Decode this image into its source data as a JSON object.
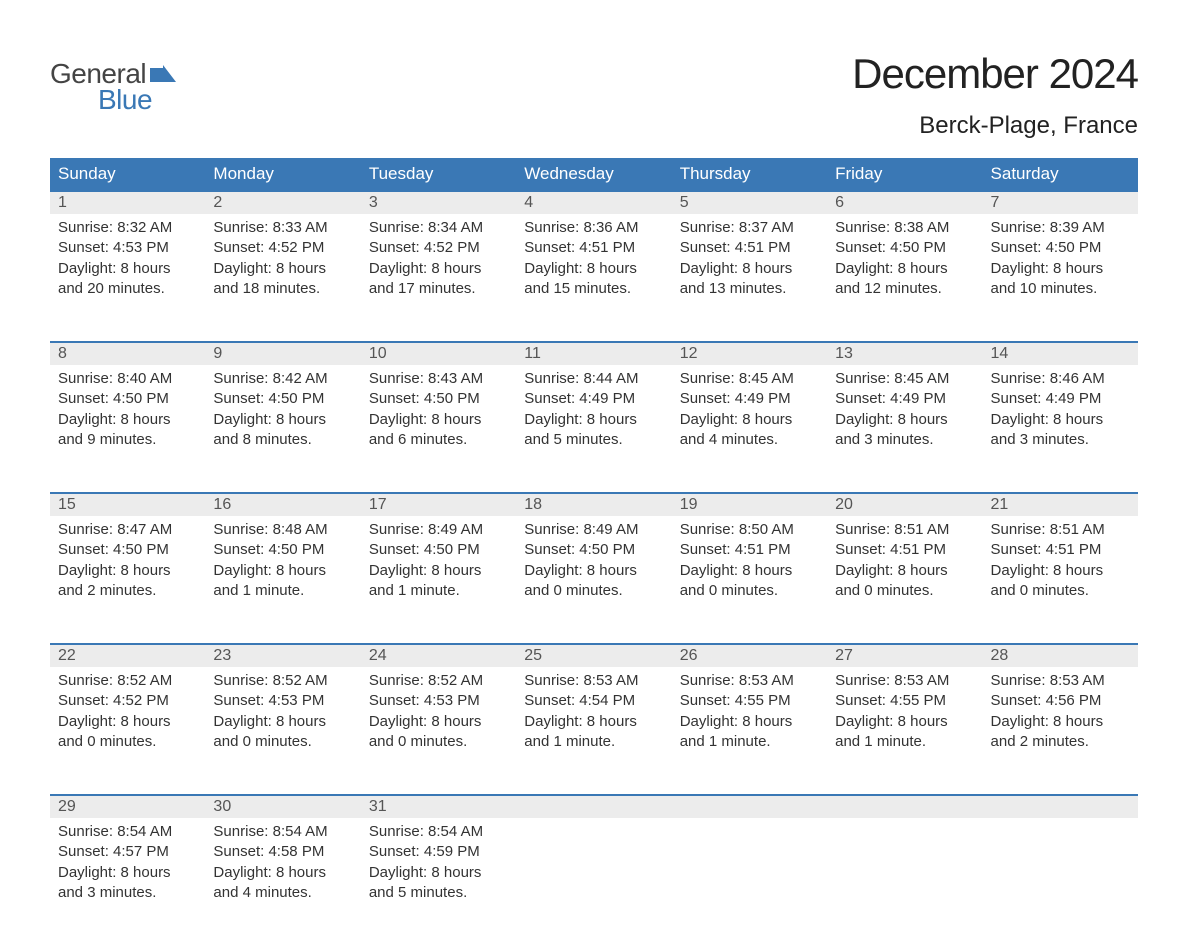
{
  "logo": {
    "top": "General",
    "bottom": "Blue",
    "flag_color": "#3a78b5"
  },
  "title": "December 2024",
  "location": "Berck-Plage, France",
  "colors": {
    "header_bg": "#3a78b5",
    "header_text": "#ffffff",
    "daynum_bg": "#ececec",
    "row_border": "#3a78b5",
    "body_text": "#333333",
    "page_bg": "#ffffff"
  },
  "weekdays": [
    "Sunday",
    "Monday",
    "Tuesday",
    "Wednesday",
    "Thursday",
    "Friday",
    "Saturday"
  ],
  "weeks": [
    [
      {
        "n": "1",
        "sr": "Sunrise: 8:32 AM",
        "ss": "Sunset: 4:53 PM",
        "d1": "Daylight: 8 hours",
        "d2": "and 20 minutes."
      },
      {
        "n": "2",
        "sr": "Sunrise: 8:33 AM",
        "ss": "Sunset: 4:52 PM",
        "d1": "Daylight: 8 hours",
        "d2": "and 18 minutes."
      },
      {
        "n": "3",
        "sr": "Sunrise: 8:34 AM",
        "ss": "Sunset: 4:52 PM",
        "d1": "Daylight: 8 hours",
        "d2": "and 17 minutes."
      },
      {
        "n": "4",
        "sr": "Sunrise: 8:36 AM",
        "ss": "Sunset: 4:51 PM",
        "d1": "Daylight: 8 hours",
        "d2": "and 15 minutes."
      },
      {
        "n": "5",
        "sr": "Sunrise: 8:37 AM",
        "ss": "Sunset: 4:51 PM",
        "d1": "Daylight: 8 hours",
        "d2": "and 13 minutes."
      },
      {
        "n": "6",
        "sr": "Sunrise: 8:38 AM",
        "ss": "Sunset: 4:50 PM",
        "d1": "Daylight: 8 hours",
        "d2": "and 12 minutes."
      },
      {
        "n": "7",
        "sr": "Sunrise: 8:39 AM",
        "ss": "Sunset: 4:50 PM",
        "d1": "Daylight: 8 hours",
        "d2": "and 10 minutes."
      }
    ],
    [
      {
        "n": "8",
        "sr": "Sunrise: 8:40 AM",
        "ss": "Sunset: 4:50 PM",
        "d1": "Daylight: 8 hours",
        "d2": "and 9 minutes."
      },
      {
        "n": "9",
        "sr": "Sunrise: 8:42 AM",
        "ss": "Sunset: 4:50 PM",
        "d1": "Daylight: 8 hours",
        "d2": "and 8 minutes."
      },
      {
        "n": "10",
        "sr": "Sunrise: 8:43 AM",
        "ss": "Sunset: 4:50 PM",
        "d1": "Daylight: 8 hours",
        "d2": "and 6 minutes."
      },
      {
        "n": "11",
        "sr": "Sunrise: 8:44 AM",
        "ss": "Sunset: 4:49 PM",
        "d1": "Daylight: 8 hours",
        "d2": "and 5 minutes."
      },
      {
        "n": "12",
        "sr": "Sunrise: 8:45 AM",
        "ss": "Sunset: 4:49 PM",
        "d1": "Daylight: 8 hours",
        "d2": "and 4 minutes."
      },
      {
        "n": "13",
        "sr": "Sunrise: 8:45 AM",
        "ss": "Sunset: 4:49 PM",
        "d1": "Daylight: 8 hours",
        "d2": "and 3 minutes."
      },
      {
        "n": "14",
        "sr": "Sunrise: 8:46 AM",
        "ss": "Sunset: 4:49 PM",
        "d1": "Daylight: 8 hours",
        "d2": "and 3 minutes."
      }
    ],
    [
      {
        "n": "15",
        "sr": "Sunrise: 8:47 AM",
        "ss": "Sunset: 4:50 PM",
        "d1": "Daylight: 8 hours",
        "d2": "and 2 minutes."
      },
      {
        "n": "16",
        "sr": "Sunrise: 8:48 AM",
        "ss": "Sunset: 4:50 PM",
        "d1": "Daylight: 8 hours",
        "d2": "and 1 minute."
      },
      {
        "n": "17",
        "sr": "Sunrise: 8:49 AM",
        "ss": "Sunset: 4:50 PM",
        "d1": "Daylight: 8 hours",
        "d2": "and 1 minute."
      },
      {
        "n": "18",
        "sr": "Sunrise: 8:49 AM",
        "ss": "Sunset: 4:50 PM",
        "d1": "Daylight: 8 hours",
        "d2": "and 0 minutes."
      },
      {
        "n": "19",
        "sr": "Sunrise: 8:50 AM",
        "ss": "Sunset: 4:51 PM",
        "d1": "Daylight: 8 hours",
        "d2": "and 0 minutes."
      },
      {
        "n": "20",
        "sr": "Sunrise: 8:51 AM",
        "ss": "Sunset: 4:51 PM",
        "d1": "Daylight: 8 hours",
        "d2": "and 0 minutes."
      },
      {
        "n": "21",
        "sr": "Sunrise: 8:51 AM",
        "ss": "Sunset: 4:51 PM",
        "d1": "Daylight: 8 hours",
        "d2": "and 0 minutes."
      }
    ],
    [
      {
        "n": "22",
        "sr": "Sunrise: 8:52 AM",
        "ss": "Sunset: 4:52 PM",
        "d1": "Daylight: 8 hours",
        "d2": "and 0 minutes."
      },
      {
        "n": "23",
        "sr": "Sunrise: 8:52 AM",
        "ss": "Sunset: 4:53 PM",
        "d1": "Daylight: 8 hours",
        "d2": "and 0 minutes."
      },
      {
        "n": "24",
        "sr": "Sunrise: 8:52 AM",
        "ss": "Sunset: 4:53 PM",
        "d1": "Daylight: 8 hours",
        "d2": "and 0 minutes."
      },
      {
        "n": "25",
        "sr": "Sunrise: 8:53 AM",
        "ss": "Sunset: 4:54 PM",
        "d1": "Daylight: 8 hours",
        "d2": "and 1 minute."
      },
      {
        "n": "26",
        "sr": "Sunrise: 8:53 AM",
        "ss": "Sunset: 4:55 PM",
        "d1": "Daylight: 8 hours",
        "d2": "and 1 minute."
      },
      {
        "n": "27",
        "sr": "Sunrise: 8:53 AM",
        "ss": "Sunset: 4:55 PM",
        "d1": "Daylight: 8 hours",
        "d2": "and 1 minute."
      },
      {
        "n": "28",
        "sr": "Sunrise: 8:53 AM",
        "ss": "Sunset: 4:56 PM",
        "d1": "Daylight: 8 hours",
        "d2": "and 2 minutes."
      }
    ],
    [
      {
        "n": "29",
        "sr": "Sunrise: 8:54 AM",
        "ss": "Sunset: 4:57 PM",
        "d1": "Daylight: 8 hours",
        "d2": "and 3 minutes."
      },
      {
        "n": "30",
        "sr": "Sunrise: 8:54 AM",
        "ss": "Sunset: 4:58 PM",
        "d1": "Daylight: 8 hours",
        "d2": "and 4 minutes."
      },
      {
        "n": "31",
        "sr": "Sunrise: 8:54 AM",
        "ss": "Sunset: 4:59 PM",
        "d1": "Daylight: 8 hours",
        "d2": "and 5 minutes."
      },
      null,
      null,
      null,
      null
    ]
  ]
}
